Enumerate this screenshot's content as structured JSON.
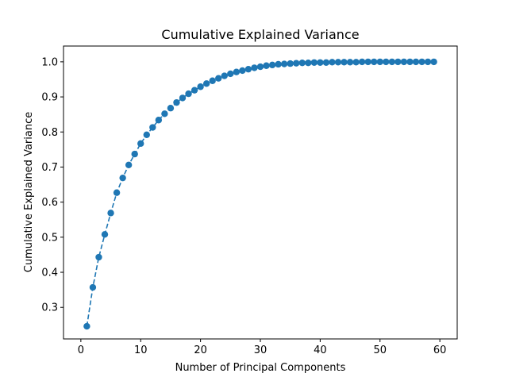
{
  "chart_data": {
    "type": "line",
    "title": "Cumulative Explained Variance",
    "xlabel": "Number of Principal Components",
    "ylabel": "Cumulative Explained Variance",
    "xlim": [
      -2.9,
      62.9
    ],
    "ylim": [
      0.21,
      1.045
    ],
    "xticks": [
      0,
      10,
      20,
      30,
      40,
      50,
      60
    ],
    "xtick_labels": [
      "0",
      "10",
      "20",
      "30",
      "40",
      "50",
      "60"
    ],
    "yticks": [
      0.3,
      0.4,
      0.5,
      0.6,
      0.7,
      0.8,
      0.9,
      1.0
    ],
    "ytick_labels": [
      "0.3",
      "0.4",
      "0.5",
      "0.6",
      "0.7",
      "0.8",
      "0.9",
      "1.0"
    ],
    "grid": false,
    "series": [
      {
        "name": "cumulative_variance",
        "color": "#1f77b4",
        "line_style": "dashed",
        "marker": "circle",
        "x": [
          1,
          2,
          3,
          4,
          5,
          6,
          7,
          8,
          9,
          10,
          11,
          12,
          13,
          14,
          15,
          16,
          17,
          18,
          19,
          20,
          21,
          22,
          23,
          24,
          25,
          26,
          27,
          28,
          29,
          30,
          31,
          32,
          33,
          34,
          35,
          36,
          37,
          38,
          39,
          40,
          41,
          42,
          43,
          44,
          45,
          46,
          47,
          48,
          49,
          50,
          51,
          52,
          53,
          54,
          55,
          56,
          57,
          58,
          59
        ],
        "values": [
          0.246,
          0.357,
          0.443,
          0.508,
          0.569,
          0.627,
          0.669,
          0.706,
          0.737,
          0.767,
          0.792,
          0.813,
          0.834,
          0.852,
          0.868,
          0.884,
          0.897,
          0.909,
          0.919,
          0.929,
          0.938,
          0.946,
          0.953,
          0.96,
          0.966,
          0.971,
          0.975,
          0.979,
          0.983,
          0.986,
          0.989,
          0.991,
          0.993,
          0.994,
          0.995,
          0.996,
          0.997,
          0.997,
          0.998,
          0.998,
          0.998,
          0.999,
          0.999,
          0.999,
          0.999,
          0.999,
          1.0,
          1.0,
          1.0,
          1.0,
          1.0,
          1.0,
          1.0,
          1.0,
          1.0,
          1.0,
          1.0,
          1.0,
          1.0
        ]
      }
    ]
  }
}
